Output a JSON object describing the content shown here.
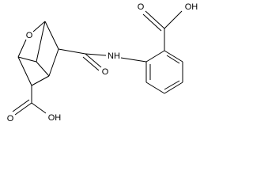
{
  "atoms": [
    {
      "label": "O"
    },
    {
      "label": "O"
    },
    {
      "label": "OH"
    },
    {
      "label": "O"
    },
    {
      "label": "NH"
    },
    {
      "label": "O"
    },
    {
      "label": "OH"
    }
  ]
}
